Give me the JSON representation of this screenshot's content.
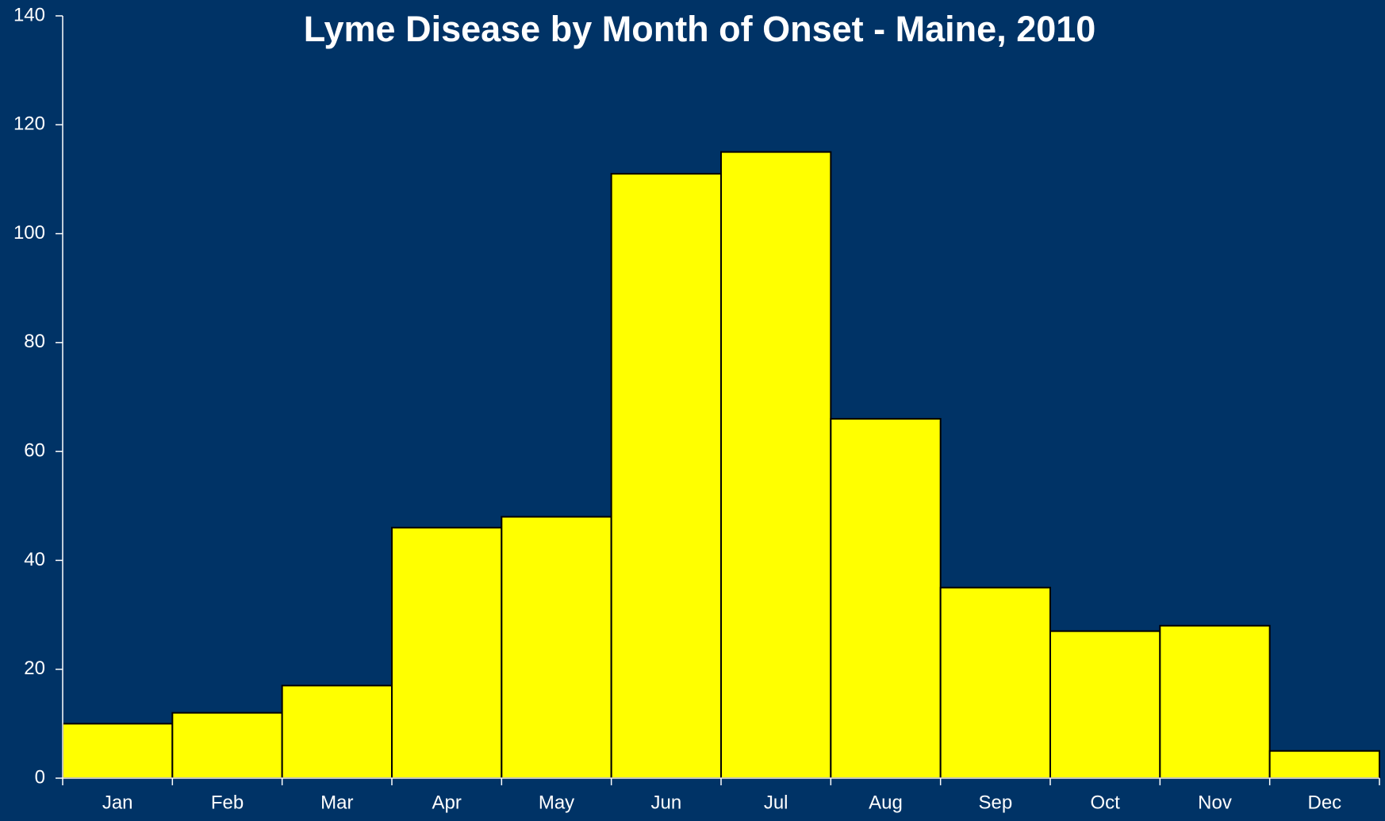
{
  "chart_data": {
    "type": "bar",
    "title": "Lyme Disease by Month of Onset - Maine, 2010",
    "categories": [
      "Jan",
      "Feb",
      "Mar",
      "Apr",
      "May",
      "Jun",
      "Jul",
      "Aug",
      "Sep",
      "Oct",
      "Nov",
      "Dec"
    ],
    "values": [
      10,
      12,
      17,
      46,
      48,
      111,
      115,
      66,
      35,
      27,
      28,
      5
    ],
    "color": "#ffff00",
    "ylim": [
      0,
      140
    ],
    "yticks": [
      0,
      20,
      40,
      60,
      80,
      100,
      120,
      140
    ],
    "grid": false
  }
}
